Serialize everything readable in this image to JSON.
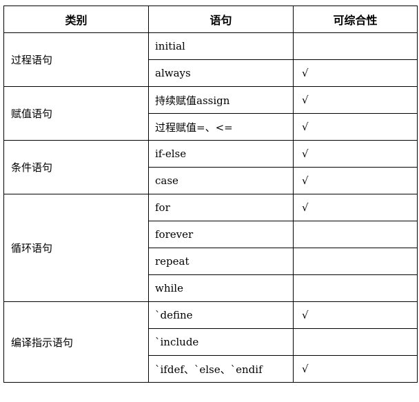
{
  "headers": [
    "类别",
    "语句",
    "可综合性"
  ],
  "groups": [
    {
      "category": "过程语句",
      "rows": [
        {
          "statement": "initial",
          "synth": ""
        },
        {
          "statement": "always",
          "synth": "√"
        }
      ]
    },
    {
      "category": "赋值语句",
      "rows": [
        {
          "statement": "持续赋值assign",
          "synth": "√"
        },
        {
          "statement": "过程赋值=、<=",
          "synth": "√"
        }
      ]
    },
    {
      "category": "条件语句",
      "rows": [
        {
          "statement": "if-else",
          "synth": "√"
        },
        {
          "statement": "case",
          "synth": "√"
        }
      ]
    },
    {
      "category": "循环语句",
      "rows": [
        {
          "statement": "for",
          "synth": "√"
        },
        {
          "statement": "forever",
          "synth": ""
        },
        {
          "statement": "repeat",
          "synth": ""
        },
        {
          "statement": "while",
          "synth": ""
        }
      ]
    },
    {
      "category": "编译指示语句",
      "rows": [
        {
          "statement": "`define",
          "synth": "√"
        },
        {
          "statement": "`include",
          "synth": ""
        },
        {
          "statement": "`ifdef、`else、`endif",
          "synth": "√"
        }
      ]
    }
  ]
}
